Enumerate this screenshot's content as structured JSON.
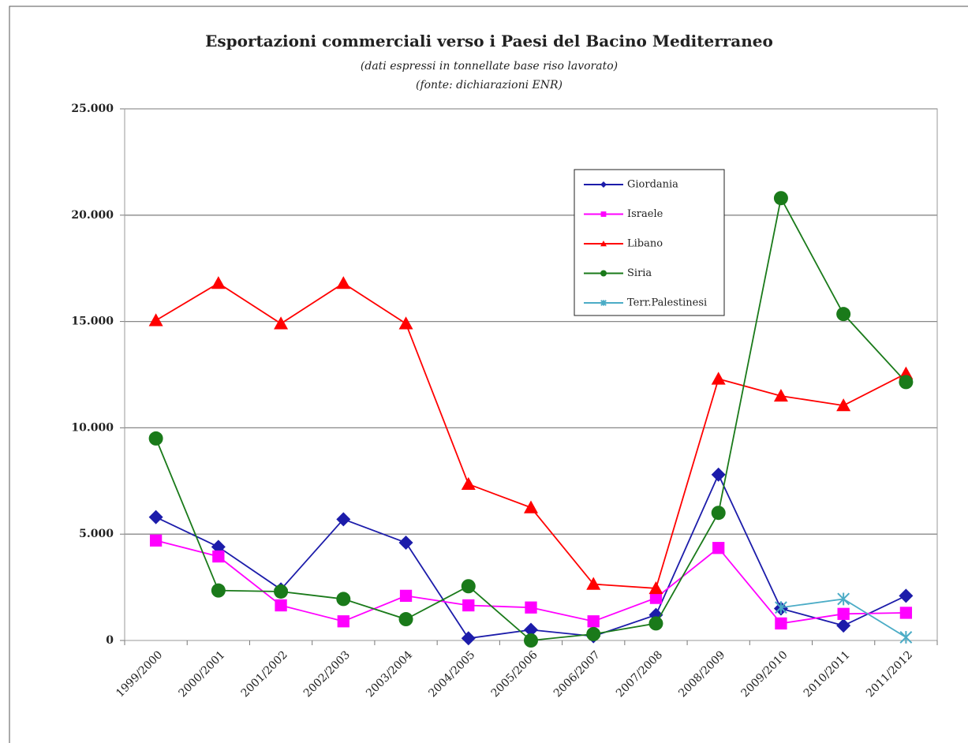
{
  "chart_data": {
    "type": "line",
    "title": "Esportazioni commerciali verso i  Paesi del Bacino Mediterraneo",
    "subtitle": "(dati espressi in tonnellate base riso lavorato)",
    "note": "(fonte: dichiarazioni ENR)",
    "categories": [
      "1999/2000",
      "2000/2001",
      "2001/2002",
      "2002/2003",
      "2003/2004",
      "2004/2005",
      "2005/2006",
      "2006/2007",
      "2007/2008",
      "2008/2009",
      "2009/2010",
      "2010/2011",
      "2011/2012"
    ],
    "series": [
      {
        "name": "Giordania",
        "color": "#1c1caa",
        "marker": "diamond",
        "values": [
          5800,
          4400,
          2400,
          5700,
          4600,
          100,
          500,
          200,
          1200,
          7800,
          1500,
          700,
          2100
        ]
      },
      {
        "name": "Israele",
        "color": "#ff00ff",
        "marker": "square",
        "values": [
          4700,
          3950,
          1650,
          900,
          2100,
          1650,
          1550,
          900,
          2000,
          4350,
          800,
          1250,
          1300
        ]
      },
      {
        "name": "Libano",
        "color": "#ff0000",
        "marker": "triangle",
        "values": [
          15050,
          16800,
          14900,
          16800,
          14900,
          7350,
          6250,
          2650,
          2450,
          12300,
          11500,
          11050,
          12550
        ]
      },
      {
        "name": "Siria",
        "color": "#1a7a1a",
        "marker": "circle",
        "values": [
          9500,
          2350,
          2300,
          1950,
          1000,
          2550,
          0,
          300,
          800,
          6000,
          20800,
          15350,
          12150
        ]
      },
      {
        "name": "Terr.Palestinesi",
        "color": "#4bacc6",
        "marker": "star",
        "values": [
          null,
          null,
          null,
          null,
          null,
          null,
          null,
          null,
          null,
          null,
          1550,
          1950,
          150
        ]
      }
    ],
    "ylim": [
      0,
      25000
    ],
    "yticks": [
      0,
      {
        "value": 5000,
        "label": "5.000"
      },
      {
        "value": 10000,
        "label": "10.000"
      },
      {
        "value": 15000,
        "label": "15.000"
      },
      {
        "value": 20000,
        "label": "20.000"
      },
      {
        "value": 25000,
        "label": "25.000"
      }
    ],
    "grid": true
  }
}
